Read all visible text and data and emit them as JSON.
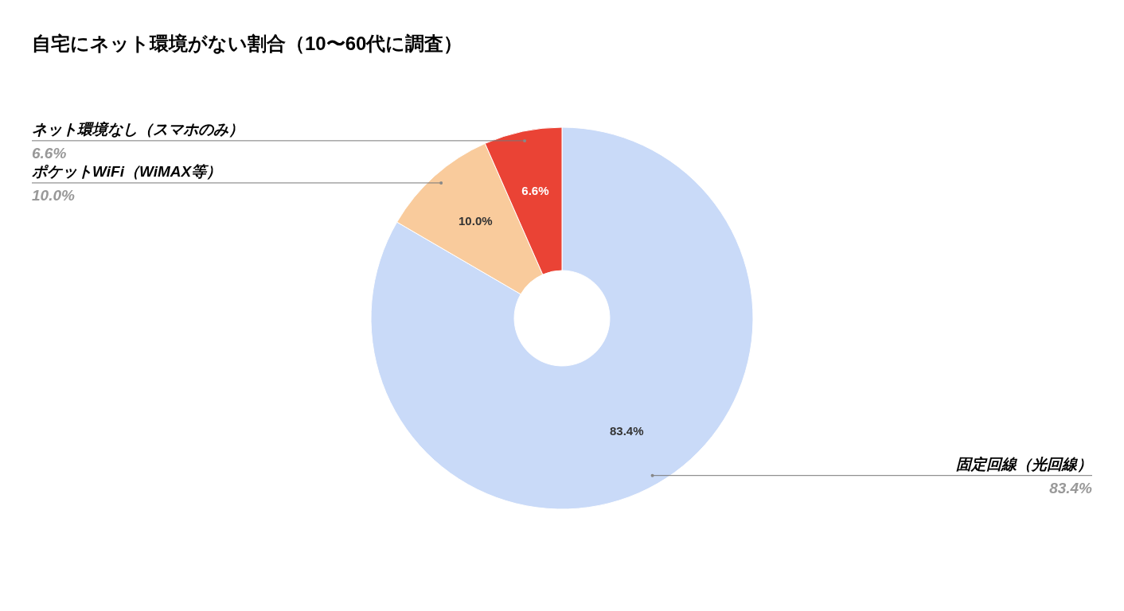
{
  "chart_data": {
    "type": "donut",
    "title": "自宅にネット環境がない割合（10〜60代に調査）",
    "categories": [
      "固定回線（光回線）",
      "ポケットWiFi（WiMAX等）",
      "ネット環境なし（スマホのみ）"
    ],
    "values": [
      83.4,
      10.0,
      6.6
    ],
    "colors": [
      "#c9daf8",
      "#f9cb9c",
      "#ea4335"
    ],
    "value_labels": [
      "83.4%",
      "10.0%",
      "6.6%"
    ],
    "legend": false
  }
}
